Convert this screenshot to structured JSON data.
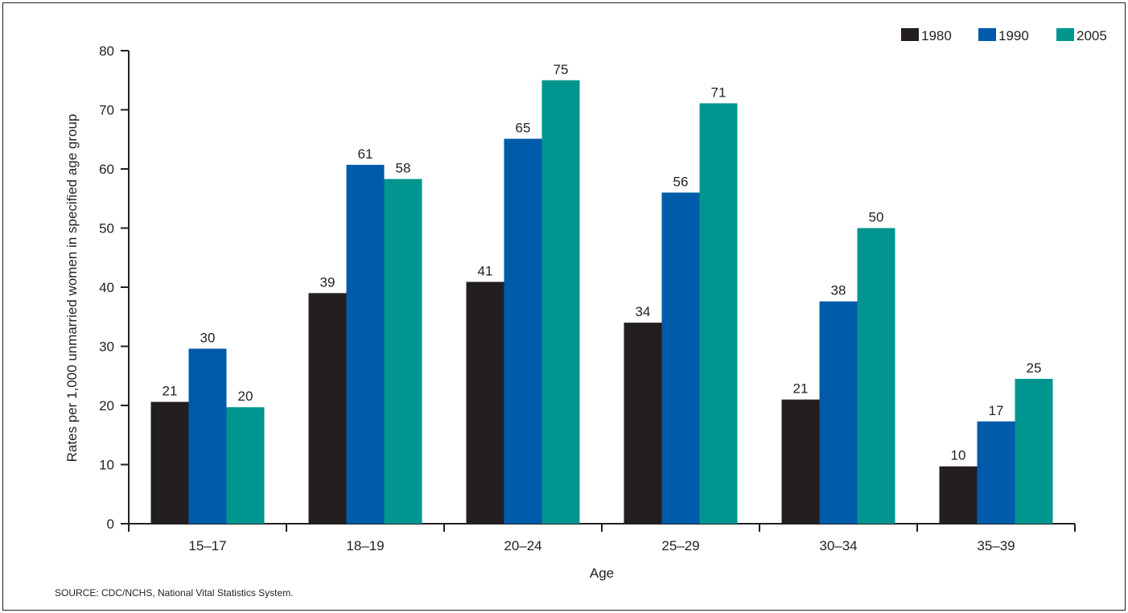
{
  "colors": {
    "1980": "#231f20",
    "1990": "#005baa",
    "2005": "#00968f",
    "axis": "#231f20",
    "background": "#ffffff"
  },
  "source_note": "SOURCE: CDC/NCHS, National Vital Statistics System.",
  "chart_data": {
    "type": "bar",
    "title": "",
    "xlabel": "Age",
    "ylabel": "Rates per 1,000 unmarried women in specified age group",
    "categories": [
      "15–17",
      "18–19",
      "20–24",
      "25–29",
      "30–34",
      "35–39"
    ],
    "series": [
      {
        "name": "1980",
        "values": [
          20.6,
          39.0,
          40.9,
          34.0,
          21.0,
          9.7
        ],
        "labels": [
          "21",
          "39",
          "41",
          "34",
          "21",
          "10"
        ]
      },
      {
        "name": "1990",
        "values": [
          29.6,
          60.7,
          65.1,
          56.0,
          37.6,
          17.3
        ],
        "labels": [
          "30",
          "61",
          "65",
          "56",
          "38",
          "17"
        ]
      },
      {
        "name": "2005",
        "values": [
          19.7,
          58.3,
          75.0,
          71.1,
          50.0,
          24.5
        ],
        "labels": [
          "20",
          "58",
          "75",
          "71",
          "50",
          "25"
        ]
      }
    ],
    "ylim": [
      0,
      80
    ],
    "yticks": [
      0,
      10,
      20,
      30,
      40,
      50,
      60,
      70,
      80
    ],
    "grid": false,
    "legend": "top-right"
  }
}
